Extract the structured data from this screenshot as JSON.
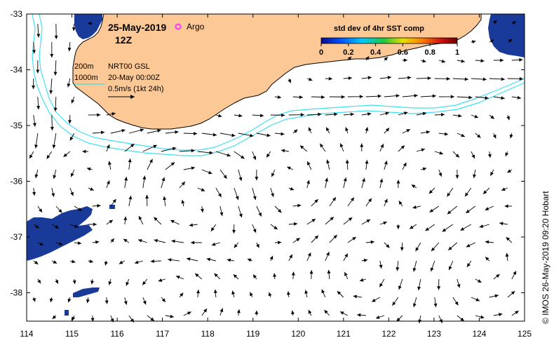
{
  "title": {
    "date": "25-May-2019",
    "time": "12Z",
    "argo_label": "Argo"
  },
  "legend": {
    "contour_200": "200m",
    "contour_1000": "1000m",
    "product": "NRT00 GSL",
    "product_time": "20-May 00:00Z",
    "scale": "0.5m/s (1kt 24h)"
  },
  "colorbar": {
    "title": "std dev of 4hr SST comp",
    "ticks": [
      "0",
      "0.2",
      "0.4",
      "0.6",
      "0.8",
      "1"
    ],
    "colors": [
      "#0a0a8c",
      "#0050ff",
      "#00c8ff",
      "#20c840",
      "#e8e000",
      "#ff8000",
      "#d01010",
      "#6a0000"
    ]
  },
  "credit": "© IMOS 26-May-2019 09:20 Hobart",
  "axes": {
    "x_ticks": [
      "114",
      "115",
      "116",
      "117",
      "118",
      "119",
      "120",
      "121",
      "122",
      "123",
      "124",
      "125"
    ],
    "y_ticks": [
      "-33",
      "-34",
      "-35",
      "-36",
      "-37",
      "-38"
    ]
  },
  "colors": {
    "land": "#fbc896",
    "contour": "#40e0ee",
    "argo": "#ff33ff",
    "sst_patch": "#1a3a9a"
  }
}
